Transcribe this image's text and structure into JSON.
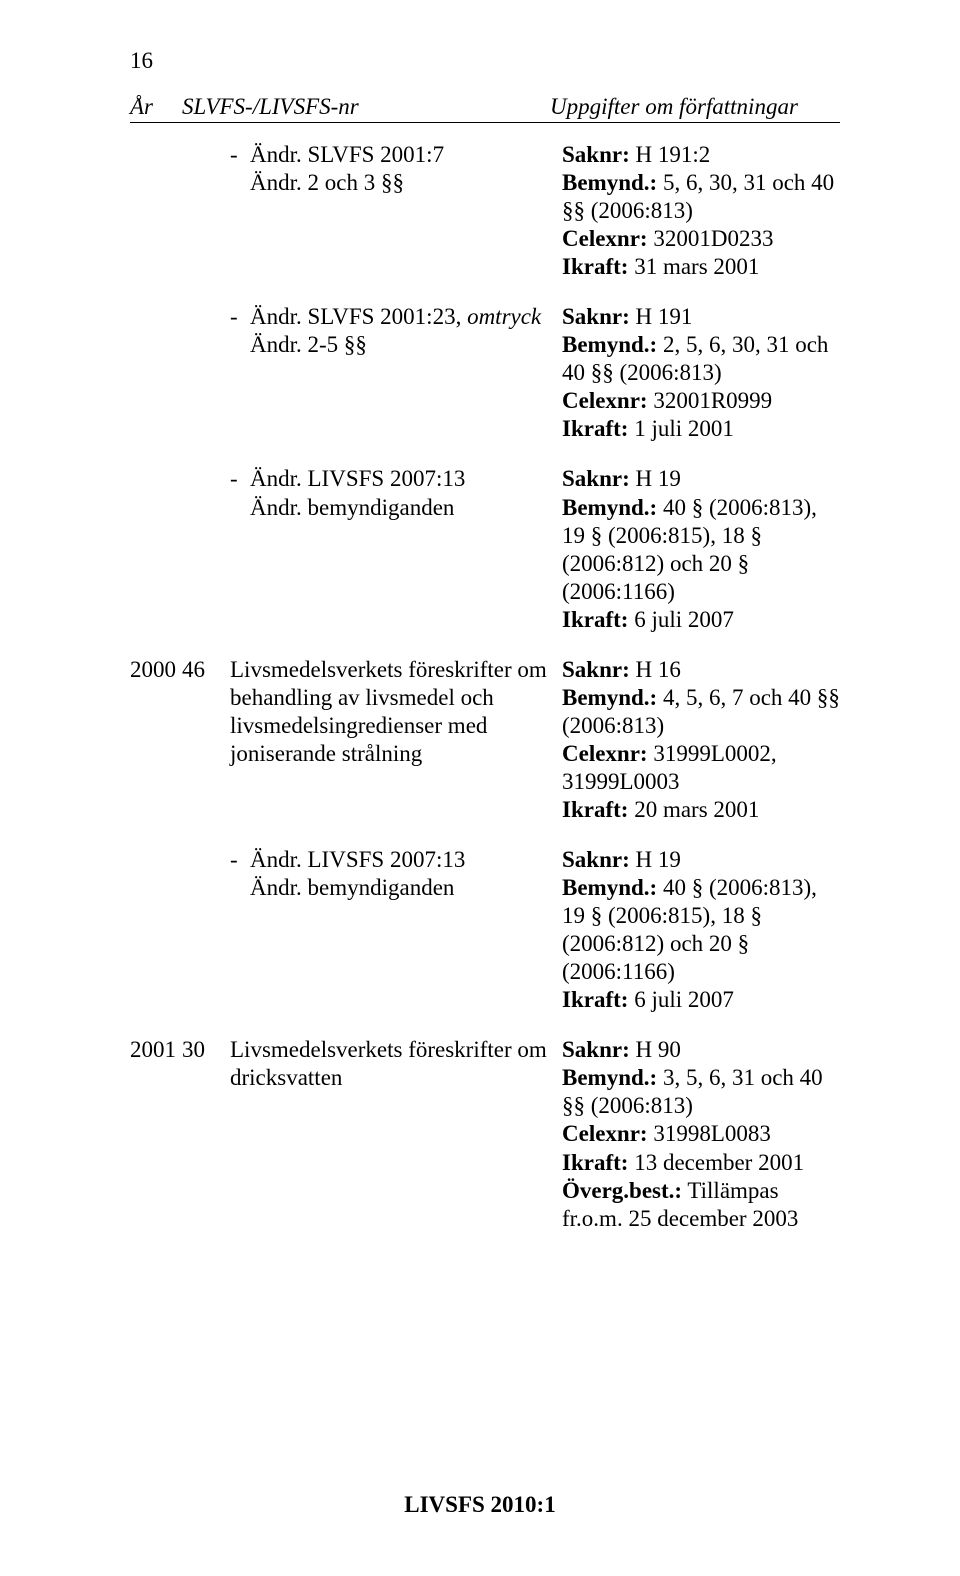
{
  "page_number": "16",
  "header": {
    "year": "År",
    "nr": "SLVFS-/LIVSFS-nr",
    "info": "Uppgifter om författningar"
  },
  "entries": [
    {
      "year": "",
      "num": "",
      "left_dash": "-",
      "left_lines": [
        "Ändr. SLVFS 2001:7",
        "Ändr. 2 och 3 §§"
      ],
      "right_lines": [
        {
          "b": "Saknr:",
          "t": " H 191:2"
        },
        {
          "b": "Bemynd.:",
          "t": " 5, 6, 30, 31 och 40 §§ (2006:813)"
        },
        {
          "b": "Celexnr:",
          "t": " 32001D0233"
        },
        {
          "b": "Ikraft:",
          "t": " 31 mars 2001"
        }
      ]
    },
    {
      "year": "",
      "num": "",
      "left_dash": "-",
      "left_lines_mixed": [
        {
          "pre": "Ändr. SLVFS 2001:23, ",
          "it": "omtryck"
        },
        {
          "pre": "Ändr. 2-5 §§",
          "it": ""
        }
      ],
      "right_lines": [
        {
          "b": "Saknr:",
          "t": " H 191"
        },
        {
          "b": "Bemynd.:",
          "t": " 2, 5, 6, 30, 31 och 40 §§ (2006:813)"
        },
        {
          "b": "Celexnr:",
          "t": " 32001R0999"
        },
        {
          "b": "Ikraft:",
          "t": " 1 juli 2001"
        }
      ]
    },
    {
      "year": "",
      "num": "",
      "left_dash": "-",
      "left_lines": [
        "Ändr. LIVSFS 2007:13",
        "Ändr. bemyndiganden"
      ],
      "right_lines": [
        {
          "b": "Saknr:",
          "t": " H 19"
        },
        {
          "b": "Bemynd.:",
          "t": " 40 § (2006:813), 19 § (2006:815), 18 § (2006:812) och 20 § (2006:1166)"
        },
        {
          "b": "Ikraft:",
          "t": " 6 juli 2007"
        }
      ]
    },
    {
      "year": "2000",
      "num": "46",
      "left_dash": "",
      "left_lines": [
        "Livsmedelsverkets föreskrifter om behandling av livsmedel och livsmedelsingredienser med joniserande strålning"
      ],
      "right_lines": [
        {
          "b": "Saknr:",
          "t": " H 16"
        },
        {
          "b": "Bemynd.:",
          "t": " 4, 5, 6, 7 och 40 §§ (2006:813)"
        },
        {
          "b": "Celexnr:",
          "t": " 31999L0002, 31999L0003"
        },
        {
          "b": "Ikraft:",
          "t": " 20 mars 2001"
        }
      ]
    },
    {
      "year": "",
      "num": "",
      "left_dash": "-",
      "left_lines": [
        "Ändr. LIVSFS 2007:13",
        "Ändr. bemyndiganden"
      ],
      "right_lines": [
        {
          "b": "Saknr:",
          "t": " H 19"
        },
        {
          "b": "Bemynd.:",
          "t": " 40 § (2006:813), 19 § (2006:815), 18 § (2006:812) och 20 § (2006:1166)"
        },
        {
          "b": "Ikraft:",
          "t": " 6 juli 2007"
        }
      ]
    },
    {
      "year": "2001",
      "num": "30",
      "left_dash": "",
      "left_lines": [
        "Livsmedelsverkets föreskrifter om dricksvatten"
      ],
      "right_lines": [
        {
          "b": "Saknr:",
          "t": " H 90"
        },
        {
          "b": "Bemynd.:",
          "t": " 3, 5, 6, 31 och 40 §§ (2006:813)"
        },
        {
          "b": "Celexnr:",
          "t": " 31998L0083"
        },
        {
          "b": "Ikraft:",
          "t": " 13 december 2001"
        },
        {
          "b": "Överg.best.:",
          "t": " Tillämpas fr.o.m. 25 december 2003"
        }
      ]
    }
  ],
  "footer": "LIVSFS 2010:1"
}
